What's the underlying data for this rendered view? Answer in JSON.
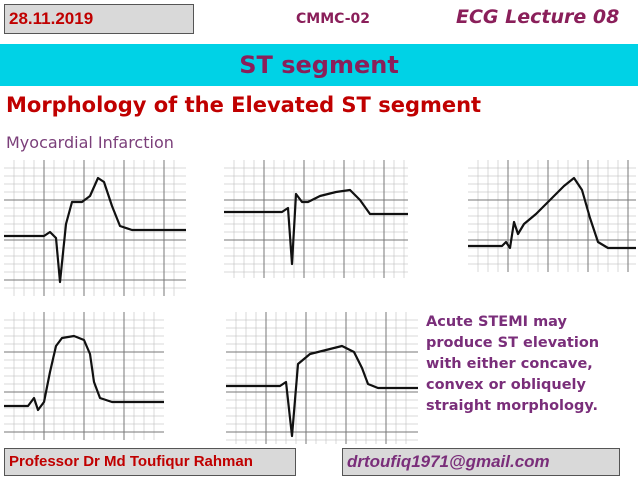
{
  "header": {
    "date": "28.11.2019",
    "code": "CMMC-02",
    "lecture": "ECG Lecture 08"
  },
  "banner": {
    "title": "ST segment"
  },
  "content": {
    "heading": "Morphology of the Elevated ST segment",
    "subheading": "Myocardial Infarction",
    "note": "Acute STEMI may produce ST elevation with either concave, convex or obliquely straight morphology."
  },
  "footer": {
    "author": "Professor Dr Md Toufiqur Rahman",
    "email": "drtoufiq1971@gmail.com"
  }
}
